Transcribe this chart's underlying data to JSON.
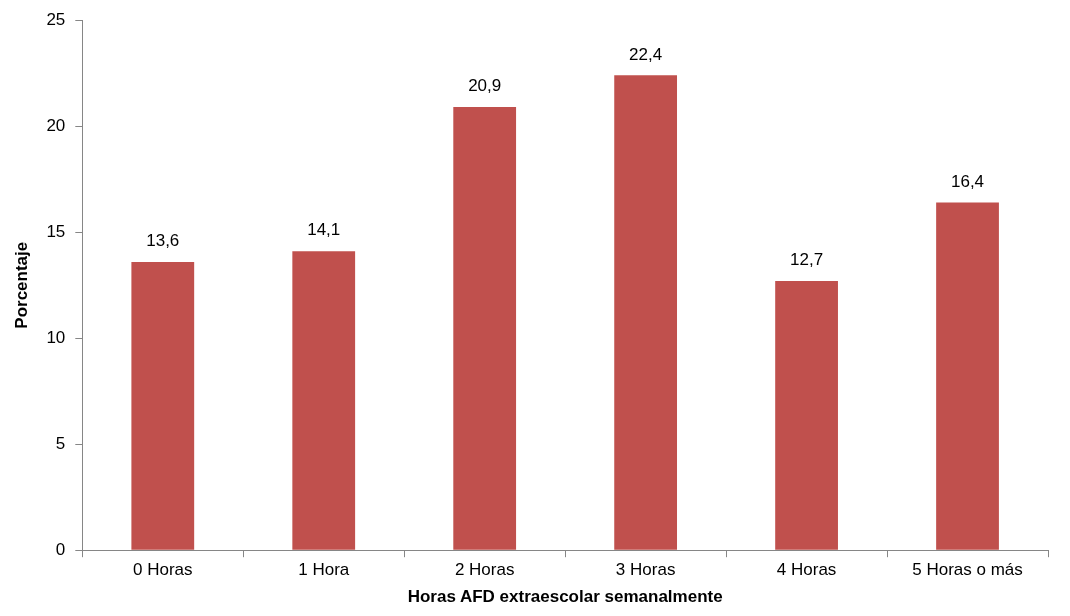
{
  "chart_data": {
    "type": "bar",
    "xlabel": "Horas AFD extraescolar semanalmente",
    "ylabel": "Porcentaje",
    "categories": [
      "0 Horas",
      "1 Hora",
      "2 Horas",
      "3 Horas",
      "4 Horas",
      "5 Horas o más"
    ],
    "values": [
      13.6,
      14.1,
      20.9,
      22.4,
      12.7,
      16.4
    ],
    "value_labels": [
      "13,6",
      "14,1",
      "20,9",
      "22,4",
      "12,7",
      "16,4"
    ],
    "color": "#c0504d",
    "ylim": [
      0,
      25
    ],
    "yticks": [
      0,
      5,
      10,
      15,
      20,
      25
    ]
  }
}
